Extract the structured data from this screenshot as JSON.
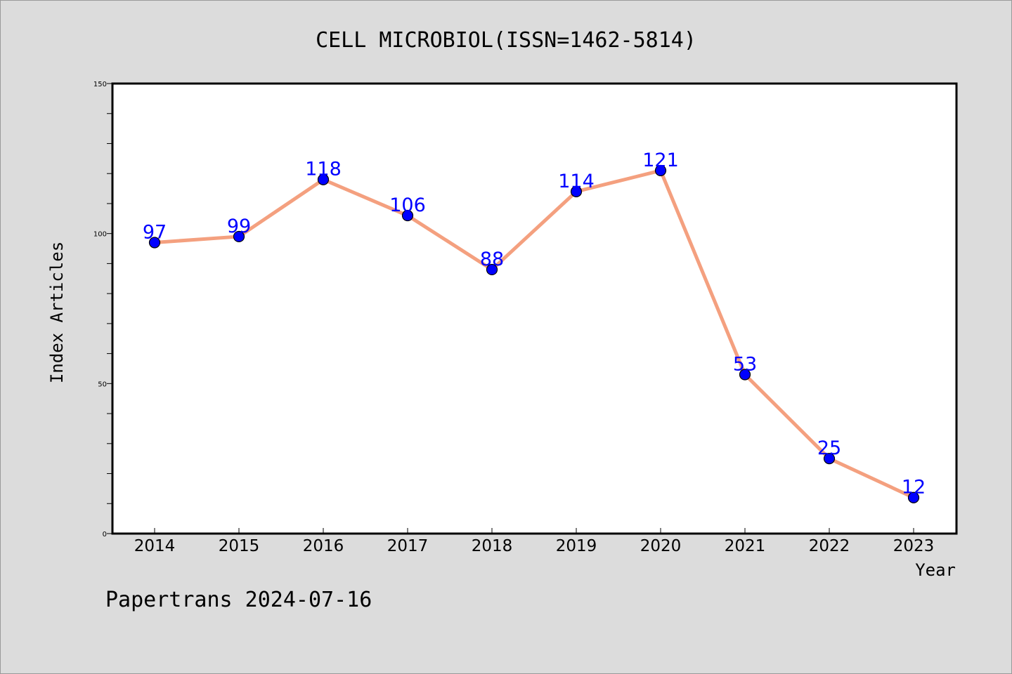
{
  "chart_data": {
    "type": "line",
    "title": "CELL MICROBIOL(ISSN=1462-5814)",
    "xlabel": "Year",
    "ylabel": "Index Articles",
    "categories": [
      "2014",
      "2015",
      "2016",
      "2017",
      "2018",
      "2019",
      "2020",
      "2021",
      "2022",
      "2023"
    ],
    "values": [
      97,
      99,
      118,
      106,
      88,
      114,
      121,
      53,
      25,
      12
    ],
    "ylim": [
      0,
      150
    ],
    "y_ticks": [
      0,
      50,
      100,
      150
    ],
    "y_minor_step": 10,
    "grid": false,
    "data_labels": true,
    "legend": "none",
    "colors": {
      "line": "#f4a07f",
      "marker": "#0000ff",
      "data_label": "#0000ff",
      "plot_background": "#ffffff",
      "figure_background": "#dcdcdc"
    }
  },
  "footer": {
    "watermark": "Papertrans 2024-07-16"
  }
}
